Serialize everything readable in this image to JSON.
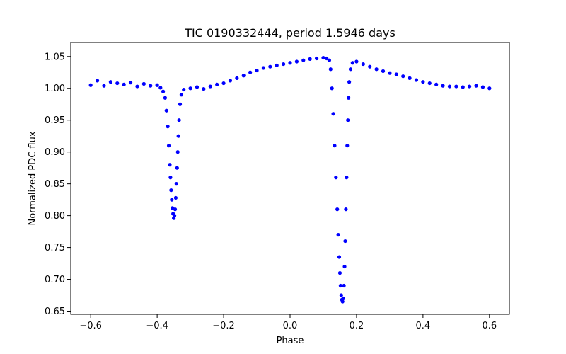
{
  "chart_data": {
    "type": "scatter",
    "title": "TIC 0190332444, period 1.5946 days",
    "xlabel": "Phase",
    "ylabel": "Normalized PDC flux",
    "xlim": [
      -0.66,
      0.66
    ],
    "ylim": [
      0.645,
      1.072
    ],
    "x_ticks": [
      -0.6,
      -0.4,
      -0.2,
      0.0,
      0.2,
      0.4,
      0.6
    ],
    "x_tick_labels": [
      "−0.6",
      "−0.4",
      "−0.2",
      "0.0",
      "0.2",
      "0.4",
      "0.6"
    ],
    "y_ticks": [
      0.65,
      0.7,
      0.75,
      0.8,
      0.85,
      0.9,
      0.95,
      1.0,
      1.05
    ],
    "y_tick_labels": [
      "0.65",
      "0.70",
      "0.75",
      "0.80",
      "0.85",
      "0.90",
      "0.95",
      "1.00",
      "1.05"
    ],
    "grid": false,
    "marker_color": "#0000ff",
    "series": [
      {
        "x": [
          -0.6,
          -0.58,
          -0.56,
          -0.54,
          -0.52,
          -0.5,
          -0.48,
          -0.46,
          -0.44,
          -0.42,
          -0.4,
          -0.39,
          -0.382,
          -0.376,
          -0.372,
          -0.368,
          -0.365,
          -0.362,
          -0.36,
          -0.358,
          -0.356,
          -0.354,
          -0.352,
          -0.35,
          -0.348,
          -0.346,
          -0.344,
          -0.342,
          -0.34,
          -0.338,
          -0.336,
          -0.334,
          -0.331,
          -0.327,
          -0.32,
          -0.3,
          -0.28,
          -0.26,
          -0.24,
          -0.22,
          -0.2,
          -0.18,
          -0.16,
          -0.14,
          -0.12,
          -0.1,
          -0.08,
          -0.06,
          -0.04,
          -0.02,
          0.0,
          0.02,
          0.04,
          0.06,
          0.08,
          0.1,
          0.11,
          0.118,
          0.122,
          0.126,
          0.13,
          0.134,
          0.138,
          0.142,
          0.145,
          0.148,
          0.15,
          0.152,
          0.154,
          0.156,
          0.158,
          0.16,
          0.162,
          0.164,
          0.166,
          0.168,
          0.17,
          0.172,
          0.174,
          0.176,
          0.178,
          0.182,
          0.188,
          0.2,
          0.22,
          0.24,
          0.26,
          0.28,
          0.3,
          0.32,
          0.34,
          0.36,
          0.38,
          0.4,
          0.42,
          0.44,
          0.46,
          0.48,
          0.5,
          0.52,
          0.54,
          0.56,
          0.58,
          0.6
        ],
        "y": [
          1.005,
          1.012,
          1.004,
          1.01,
          1.008,
          1.006,
          1.009,
          1.003,
          1.007,
          1.004,
          1.005,
          1.001,
          0.995,
          0.985,
          0.965,
          0.94,
          0.91,
          0.88,
          0.86,
          0.84,
          0.825,
          0.812,
          0.803,
          0.796,
          0.8,
          0.81,
          0.828,
          0.85,
          0.875,
          0.9,
          0.925,
          0.95,
          0.975,
          0.99,
          0.998,
          1.0,
          1.002,
          0.999,
          1.003,
          1.006,
          1.008,
          1.012,
          1.016,
          1.02,
          1.025,
          1.028,
          1.032,
          1.034,
          1.036,
          1.038,
          1.04,
          1.042,
          1.044,
          1.046,
          1.047,
          1.048,
          1.047,
          1.044,
          1.03,
          1.0,
          0.96,
          0.91,
          0.86,
          0.81,
          0.77,
          0.735,
          0.71,
          0.69,
          0.675,
          0.668,
          0.665,
          0.67,
          0.69,
          0.72,
          0.76,
          0.81,
          0.86,
          0.91,
          0.95,
          0.985,
          1.01,
          1.03,
          1.04,
          1.042,
          1.038,
          1.034,
          1.03,
          1.027,
          1.024,
          1.022,
          1.019,
          1.016,
          1.013,
          1.01,
          1.008,
          1.006,
          1.004,
          1.003,
          1.003,
          1.002,
          1.003,
          1.004,
          1.002,
          1.0
        ]
      }
    ]
  }
}
